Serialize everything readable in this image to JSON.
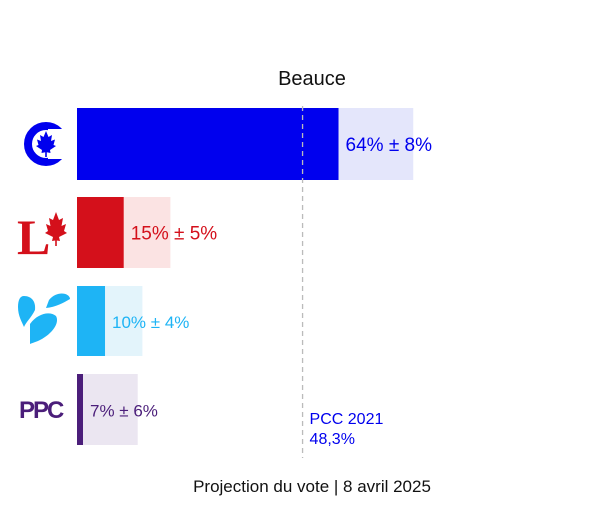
{
  "chart_data": {
    "type": "bar",
    "orientation": "horizontal",
    "title": "Beauce",
    "footer": "Projection du vote | 8 avril 2025",
    "xlim": [
      0,
      100
    ],
    "grid": false,
    "legend": "none",
    "categories": [
      "PCC",
      "PLC",
      "Bloc Québécois",
      "PPC"
    ],
    "series": [
      {
        "values": [
          64,
          15,
          10,
          7
        ],
        "errors": [
          8,
          5,
          4,
          6
        ],
        "labels": [
          "64% ± 8%",
          "15% ± 5%",
          "10% ± 4%",
          "7% ± 6%"
        ],
        "colors": [
          "#0000ee",
          "#d4101b",
          "#1eb4f5",
          "#4b1e7a"
        ],
        "range_colors": [
          "#e4e6fb",
          "#fbe3e3",
          "#e3f4fb",
          "#ebe6f1"
        ]
      }
    ],
    "reference_line": {
      "value": 48.3,
      "label_line1": "PCC 2021",
      "label_line2": "48,3%",
      "color": "#0000ee"
    },
    "party_logos": [
      {
        "icon": "conservative-party-logo-icon",
        "color": "#0000ee"
      },
      {
        "icon": "liberal-party-logo-icon",
        "color": "#d4101b"
      },
      {
        "icon": "bloc-quebecois-logo-icon",
        "color": "#1eb4f5"
      },
      {
        "icon": "ppc-logo-icon",
        "text": "PPC",
        "color": "#4b1e7a"
      }
    ]
  }
}
